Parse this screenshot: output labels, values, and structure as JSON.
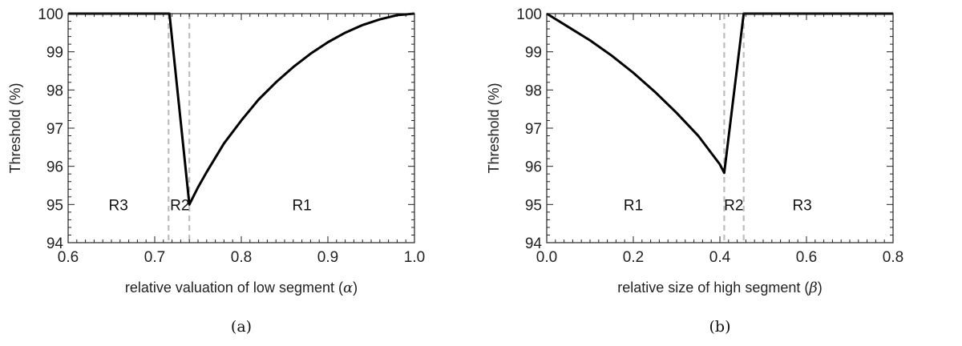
{
  "chart_data": [
    {
      "type": "line",
      "caption": "(a)",
      "xlabel_main": "relative valuation of low segment (",
      "xlabel_symbol": "α",
      "xlabel_close": ")",
      "ylabel": "Threshold (%)",
      "xlim": [
        0.6,
        1.0
      ],
      "ylim": [
        94,
        100
      ],
      "xticks": [
        0.6,
        0.7,
        0.8,
        0.9,
        1.0
      ],
      "xtick_labels": [
        "0.6",
        "0.7",
        "0.8",
        "0.9",
        "1.0"
      ],
      "yticks": [
        94,
        95,
        96,
        97,
        98,
        99,
        100
      ],
      "ytick_labels": [
        "94",
        "95",
        "96",
        "97",
        "98",
        "99",
        "100"
      ],
      "dashed_lines": [
        0.716,
        0.74
      ],
      "regions": [
        {
          "label": "R3",
          "x": 0.658,
          "y": 95
        },
        {
          "label": "R2",
          "x": 0.729,
          "y": 95
        },
        {
          "label": "R1",
          "x": 0.87,
          "y": 95
        }
      ],
      "series": [
        {
          "x": [
            0.6,
            0.65,
            0.7,
            0.717,
            0.74,
            0.75,
            0.76,
            0.78,
            0.8,
            0.82,
            0.84,
            0.86,
            0.88,
            0.9,
            0.92,
            0.94,
            0.96,
            0.98,
            1.0
          ],
          "y": [
            100,
            100,
            100,
            100,
            95.0,
            95.45,
            95.85,
            96.6,
            97.2,
            97.75,
            98.2,
            98.6,
            98.95,
            99.25,
            99.5,
            99.7,
            99.85,
            99.96,
            100
          ]
        }
      ]
    },
    {
      "type": "line",
      "caption": "(b)",
      "xlabel_main": "relative size of high segment (",
      "xlabel_symbol": "β",
      "xlabel_close": ")",
      "ylabel": "Threshold (%)",
      "xlim": [
        0.0,
        0.8
      ],
      "ylim": [
        94,
        100
      ],
      "xticks": [
        0.0,
        0.2,
        0.4,
        0.6,
        0.8
      ],
      "xtick_labels": [
        "0.0",
        "0.2",
        "0.4",
        "0.6",
        "0.8"
      ],
      "yticks": [
        94,
        95,
        96,
        97,
        98,
        99,
        100
      ],
      "ytick_labels": [
        "94",
        "95",
        "96",
        "97",
        "98",
        "99",
        "100"
      ],
      "dashed_lines": [
        0.41,
        0.455
      ],
      "regions": [
        {
          "label": "R1",
          "x": 0.2,
          "y": 95
        },
        {
          "label": "R2",
          "x": 0.432,
          "y": 95
        },
        {
          "label": "R3",
          "x": 0.59,
          "y": 95
        }
      ],
      "series": [
        {
          "x": [
            0.0,
            0.05,
            0.1,
            0.15,
            0.2,
            0.25,
            0.3,
            0.35,
            0.4,
            0.41,
            0.455,
            0.5,
            0.6,
            0.7,
            0.8
          ],
          "y": [
            100,
            99.65,
            99.3,
            98.9,
            98.45,
            97.95,
            97.4,
            96.8,
            96.05,
            95.83,
            100,
            100,
            100,
            100,
            100
          ]
        }
      ]
    }
  ]
}
